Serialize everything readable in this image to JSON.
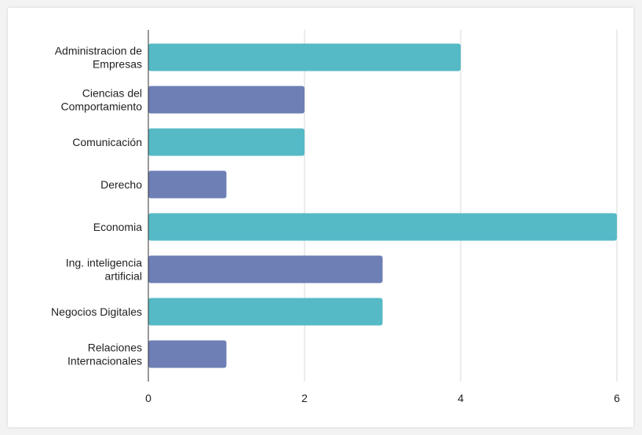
{
  "chart_data": {
    "type": "bar",
    "orientation": "horizontal",
    "title": "",
    "xlabel": "",
    "ylabel": "",
    "categories": [
      [
        "Administracion de",
        "Empresas"
      ],
      [
        "Ciencias del",
        "Comportamiento"
      ],
      [
        "Comunicación"
      ],
      [
        "Derecho"
      ],
      [
        "Economia"
      ],
      [
        "Ing. inteligencia",
        "artificial"
      ],
      [
        "Negocios Digitales"
      ],
      [
        "Relaciones",
        "Internacionales"
      ]
    ],
    "values": [
      4,
      2,
      2,
      1,
      6,
      3,
      3,
      1
    ],
    "colors": [
      "#56BAC6",
      "#6E7FB6",
      "#56BAC6",
      "#6E7FB6",
      "#56BAC6",
      "#6E7FB6",
      "#56BAC6",
      "#6E7FB6"
    ],
    "xlim": [
      0,
      6
    ],
    "xticks": [
      0,
      2,
      4,
      6
    ],
    "grid": true,
    "legend": "none"
  }
}
